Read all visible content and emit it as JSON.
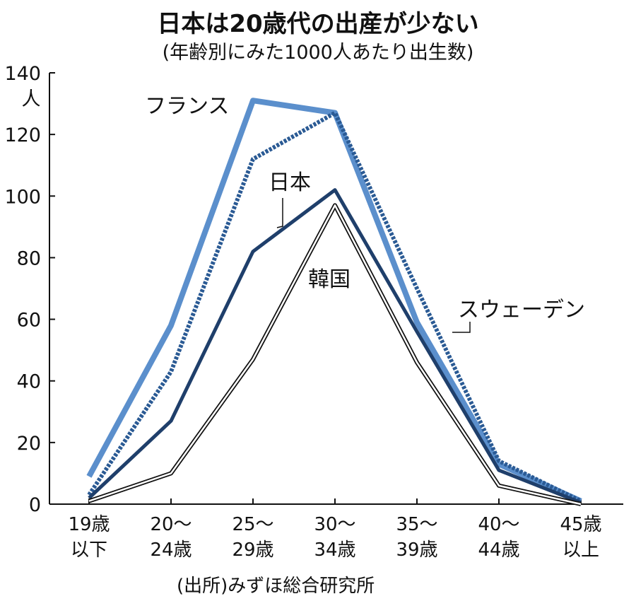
{
  "chart_data": {
    "type": "line",
    "title": "日本は20歳代の出産が少ない",
    "subtitle": "(年齢別にみた1000人あたり出生数)",
    "ylabel": "人",
    "ylim": [
      0,
      140
    ],
    "yticks": [
      0,
      20,
      40,
      60,
      80,
      100,
      120,
      140
    ],
    "categories": [
      [
        "19歳",
        "以下"
      ],
      [
        "20～",
        "24歳"
      ],
      [
        "25～",
        "29歳"
      ],
      [
        "30～",
        "34歳"
      ],
      [
        "35～",
        "39歳"
      ],
      [
        "40～",
        "44歳"
      ],
      [
        "45歳",
        "以上"
      ]
    ],
    "grid": false,
    "series": [
      {
        "name": "フランス",
        "values": [
          9,
          58,
          131,
          127,
          59,
          13,
          1
        ],
        "color": "#5b8fcc",
        "style": "solid-thick"
      },
      {
        "name": "スウェーデン",
        "values": [
          3,
          43,
          112,
          127,
          70,
          14,
          1
        ],
        "color": "#2a5a94",
        "style": "dotted"
      },
      {
        "name": "日本",
        "values": [
          2,
          27,
          82,
          102,
          56,
          11,
          0.5
        ],
        "color": "#1f3f6b",
        "style": "solid"
      },
      {
        "name": "韓国",
        "values": [
          1,
          10,
          47,
          97,
          46,
          6,
          0
        ],
        "color": "#111111",
        "style": "double"
      }
    ],
    "source": "(出所)みずほ総合研究所"
  }
}
